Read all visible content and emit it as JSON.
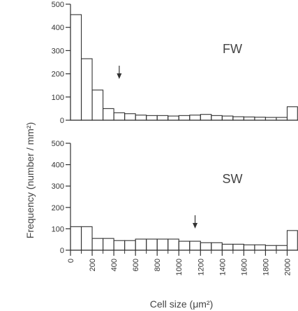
{
  "chart_data": [
    {
      "type": "bar",
      "panel_label": "FW",
      "bin_width": 100,
      "bin_starts": [
        0,
        100,
        200,
        300,
        400,
        500,
        600,
        700,
        800,
        900,
        1000,
        1100,
        1200,
        1300,
        1400,
        1500,
        1600,
        1700,
        1800,
        1900,
        2000
      ],
      "values": [
        455,
        265,
        130,
        50,
        32,
        28,
        22,
        20,
        20,
        18,
        20,
        22,
        25,
        20,
        18,
        15,
        14,
        13,
        12,
        12,
        58
      ],
      "ylim": [
        0,
        500
      ],
      "yticks": [
        0,
        100,
        200,
        300,
        400,
        500
      ],
      "arrow_x": 450
    },
    {
      "type": "bar",
      "panel_label": "SW",
      "bin_width": 100,
      "bin_starts": [
        0,
        100,
        200,
        300,
        400,
        500,
        600,
        700,
        800,
        900,
        1000,
        1100,
        1200,
        1300,
        1400,
        1500,
        1600,
        1700,
        1800,
        1900,
        2000
      ],
      "values": [
        110,
        110,
        55,
        55,
        45,
        45,
        52,
        52,
        52,
        52,
        42,
        42,
        35,
        35,
        28,
        28,
        25,
        25,
        22,
        22,
        92
      ],
      "ylim": [
        0,
        500
      ],
      "yticks": [
        0,
        100,
        200,
        300,
        400,
        500
      ],
      "arrow_x": 1150,
      "xticks": [
        0,
        200,
        400,
        600,
        800,
        1000,
        1200,
        1400,
        1600,
        1800,
        2000
      ],
      "xlim": [
        0,
        2100
      ],
      "xlabel": "Cell size (μm²)"
    }
  ],
  "ylabel": "Frequency (number / mm²)",
  "colors": {
    "bars": "#333333",
    "text": "#333333",
    "background": "#ffffff"
  }
}
